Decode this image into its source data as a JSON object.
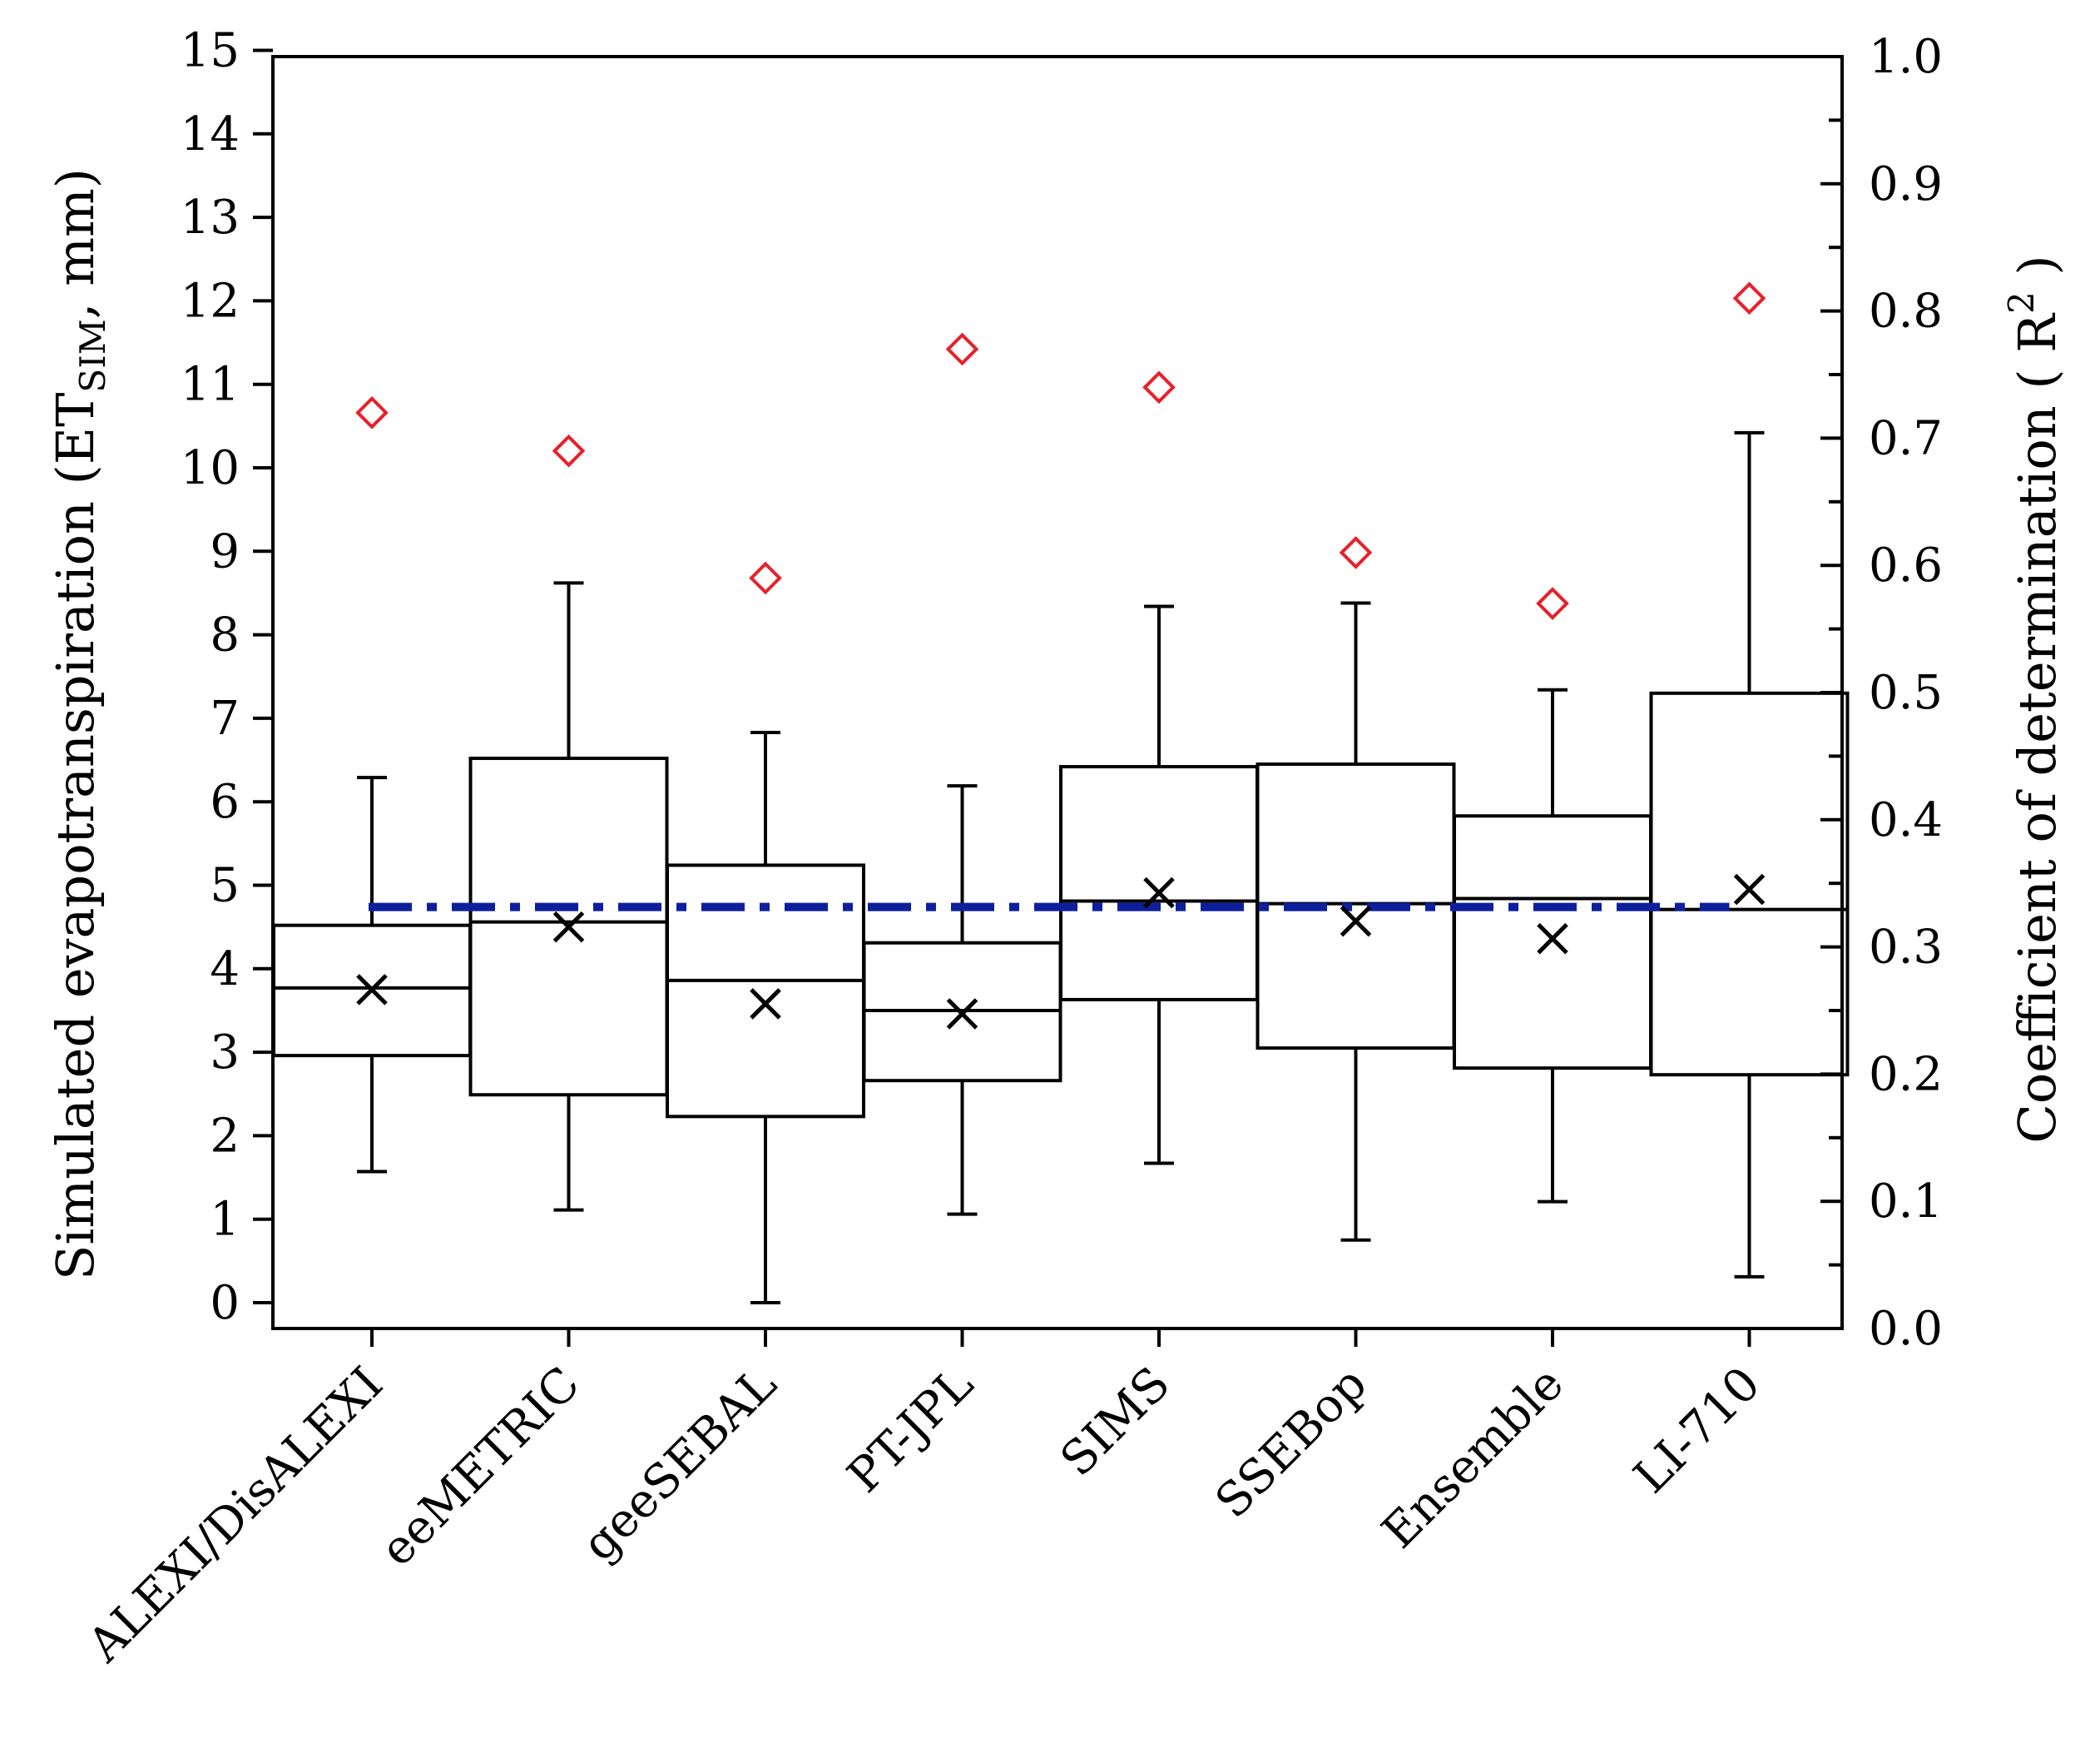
{
  "chart_data": {
    "type": "box",
    "categories": [
      "ALEXI/DisALEXI",
      "eeMETRIC",
      "geeSEBAL",
      "PT-JPL",
      "SIMS",
      "SSEBop",
      "Ensemble",
      "LI-710"
    ],
    "boxes": [
      {
        "name": "ALEXI/DisALEXI",
        "whisker_low": 1.57,
        "q1": 2.96,
        "median": 3.77,
        "q3": 4.52,
        "whisker_high": 6.29,
        "mean": 3.75
      },
      {
        "name": "eeMETRIC",
        "whisker_low": 1.11,
        "q1": 2.49,
        "median": 4.56,
        "q3": 6.52,
        "whisker_high": 8.62,
        "mean": 4.5
      },
      {
        "name": "geeSEBAL",
        "whisker_low": 0.0,
        "q1": 2.23,
        "median": 3.86,
        "q3": 5.24,
        "whisker_high": 6.83,
        "mean": 3.58
      },
      {
        "name": "PT-JPL",
        "whisker_low": 1.06,
        "q1": 2.66,
        "median": 3.5,
        "q3": 4.31,
        "whisker_high": 6.19,
        "mean": 3.46
      },
      {
        "name": "SIMS",
        "whisker_low": 1.67,
        "q1": 3.63,
        "median": 4.81,
        "q3": 6.42,
        "whisker_high": 8.34,
        "mean": 4.91
      },
      {
        "name": "SSEBop",
        "whisker_low": 0.75,
        "q1": 3.05,
        "median": 4.78,
        "q3": 6.45,
        "whisker_high": 8.38,
        "mean": 4.57
      },
      {
        "name": "Ensemble",
        "whisker_low": 1.21,
        "q1": 2.81,
        "median": 4.84,
        "q3": 5.83,
        "whisker_high": 7.34,
        "mean": 4.36
      },
      {
        "name": "LI-710",
        "whisker_low": 0.31,
        "q1": 2.73,
        "median": 4.71,
        "q3": 7.3,
        "whisker_high": 10.42,
        "mean": 4.95
      }
    ],
    "r2": [
      {
        "name": "ALEXI/DisALEXI",
        "value": 0.72
      },
      {
        "name": "eeMETRIC",
        "value": 0.69
      },
      {
        "name": "geeSEBAL",
        "value": 0.59
      },
      {
        "name": "PT-JPL",
        "value": 0.77
      },
      {
        "name": "SIMS",
        "value": 0.74
      },
      {
        "name": "SSEBop",
        "value": 0.61
      },
      {
        "name": "Ensemble",
        "value": 0.57
      },
      {
        "name": "LI-710",
        "value": 0.81
      }
    ],
    "reference_line": {
      "value": 4.74,
      "style": "dash-dot",
      "color": "#0d1f9c"
    },
    "y_left": {
      "label_main": "Simulated evapotranspiration (ET",
      "label_sub": "SIM",
      "label_end": ", mm)",
      "ylim": [
        0,
        15
      ],
      "ticks": [
        "0",
        "1",
        "2",
        "3",
        "4",
        "5",
        "6",
        "7",
        "8",
        "9",
        "10",
        "11",
        "12",
        "13",
        "14",
        "15"
      ]
    },
    "y_right": {
      "label_main": "Coefficient of determination ( R",
      "label_sup": "2",
      "label_end": " )",
      "ylim": [
        0.0,
        1.0
      ],
      "ticks": [
        "0.0",
        "0.1",
        "0.2",
        "0.3",
        "0.4",
        "0.5",
        "0.6",
        "0.7",
        "0.8",
        "0.9",
        "1.0"
      ]
    },
    "colors": {
      "box": "#000000",
      "mean_marker": "#000000",
      "r2_marker": "#e8202a",
      "reference": "#0d1f9c"
    },
    "grid": false
  }
}
